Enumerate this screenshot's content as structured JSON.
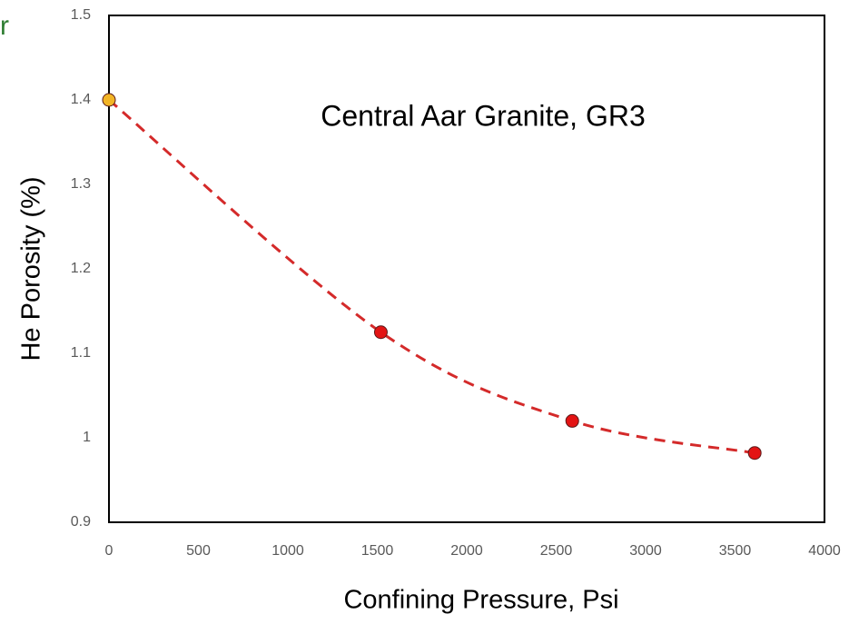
{
  "chart_data": {
    "type": "scatter",
    "annotation": "Central Aar Granite, GR3",
    "corner_text": "r",
    "xlabel": "Confining Pressure, Psi",
    "ylabel": "He Porosity (%)",
    "series": [
      {
        "x": [
          0,
          1520,
          2590,
          3610
        ],
        "values": [
          1.4,
          1.125,
          1.02,
          0.982
        ],
        "point_colors": [
          "#f2b526",
          "#e31414",
          "#e31414",
          "#e31414"
        ],
        "color": "#d42a2a",
        "trend": "dashed"
      }
    ],
    "xlim": [
      0,
      4000
    ],
    "xticks": [
      0,
      500,
      1000,
      1500,
      2000,
      2500,
      3000,
      3500,
      4000
    ],
    "ylim": [
      0.9,
      1.5
    ],
    "yticks": [
      0.9,
      1,
      1.1,
      1.2,
      1.3,
      1.4,
      1.5
    ],
    "grid": false
  }
}
